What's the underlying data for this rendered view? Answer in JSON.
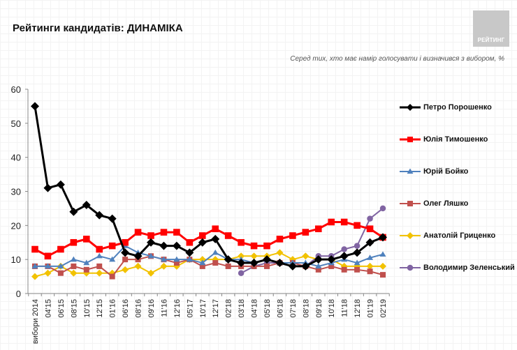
{
  "header": {
    "title": "Рейтинги кандидатів: ДИНАМІКА",
    "subtitle": "Серед тих, хто має намір голосувати і визначився з вибором, %",
    "logo_text": "РЕЙТИНГ"
  },
  "chart_data": {
    "type": "line",
    "title": "Рейтинги кандидатів: ДИНАМІКА",
    "subtitle": "Серед тих, хто має намір голосувати і визначився з вибором, %",
    "xlabel": "",
    "ylabel": "",
    "ylim": [
      0,
      60
    ],
    "yticks": [
      0,
      10,
      20,
      30,
      40,
      50,
      60
    ],
    "grid": false,
    "legend_position": "right",
    "categories": [
      "вибори 2014",
      "04'15",
      "06'15",
      "08'15",
      "10'15",
      "12'15",
      "01'16",
      "06'16",
      "08'16",
      "09'16",
      "11'16",
      "12'16",
      "05'17",
      "10'17",
      "12'17",
      "02'18",
      "03'18",
      "04'18",
      "05'18",
      "06'18",
      "07'18",
      "08'18",
      "09'18",
      "10'18",
      "11'18",
      "12'18",
      "01'19",
      "02'19"
    ],
    "series": [
      {
        "name": "Петро Порошенко",
        "color": "#000000",
        "marker": "diamond",
        "values": [
          55,
          31,
          32,
          24,
          26,
          23,
          22,
          12,
          11,
          15,
          14,
          14,
          12,
          15,
          16,
          10,
          9,
          9,
          10,
          9,
          8,
          8,
          10,
          10,
          11,
          12,
          15,
          16.5
        ]
      },
      {
        "name": "Юлія Тимошенко",
        "color": "#ff0000",
        "marker": "square",
        "values": [
          13,
          11,
          13,
          15,
          16,
          13,
          14,
          15,
          18,
          17,
          18,
          18,
          15,
          17,
          19,
          17,
          15,
          14,
          14,
          16,
          17,
          18,
          19,
          21,
          21,
          20,
          19,
          16.5
        ]
      },
      {
        "name": "Юрій Бойко",
        "color": "#4f81bd",
        "marker": "triangle",
        "values": [
          8,
          8,
          8,
          10,
          9,
          11,
          10,
          14,
          12,
          11,
          10,
          10,
          10,
          9,
          12,
          10,
          10,
          9,
          10,
          9,
          9,
          9,
          8,
          9,
          10,
          9,
          10.5,
          11.5
        ]
      },
      {
        "name": "Олег Ляшко",
        "color": "#c0504d",
        "marker": "square",
        "values": [
          8,
          8,
          6,
          8,
          7,
          8,
          5,
          10,
          10,
          11,
          10,
          9,
          10,
          8,
          9,
          8,
          8,
          8,
          8,
          9,
          9,
          8,
          7,
          8,
          7,
          7,
          6.5,
          5.5
        ]
      },
      {
        "name": "Анатолій Гриценко",
        "color": "#f2c200",
        "marker": "diamond",
        "values": [
          5,
          6,
          8,
          6,
          6,
          6,
          6,
          7,
          8,
          6,
          8,
          8,
          10,
          10,
          10,
          10,
          11,
          11,
          11,
          12,
          10,
          11,
          10,
          10,
          8,
          8,
          8,
          8
        ]
      },
      {
        "name": "Володимир Зеленський",
        "color": "#8064a2",
        "marker": "circle",
        "values": [
          null,
          null,
          null,
          null,
          null,
          null,
          null,
          null,
          null,
          null,
          null,
          null,
          null,
          null,
          null,
          null,
          6,
          8,
          9,
          9,
          8,
          8,
          11,
          11,
          13,
          14,
          22,
          25
        ]
      }
    ]
  }
}
